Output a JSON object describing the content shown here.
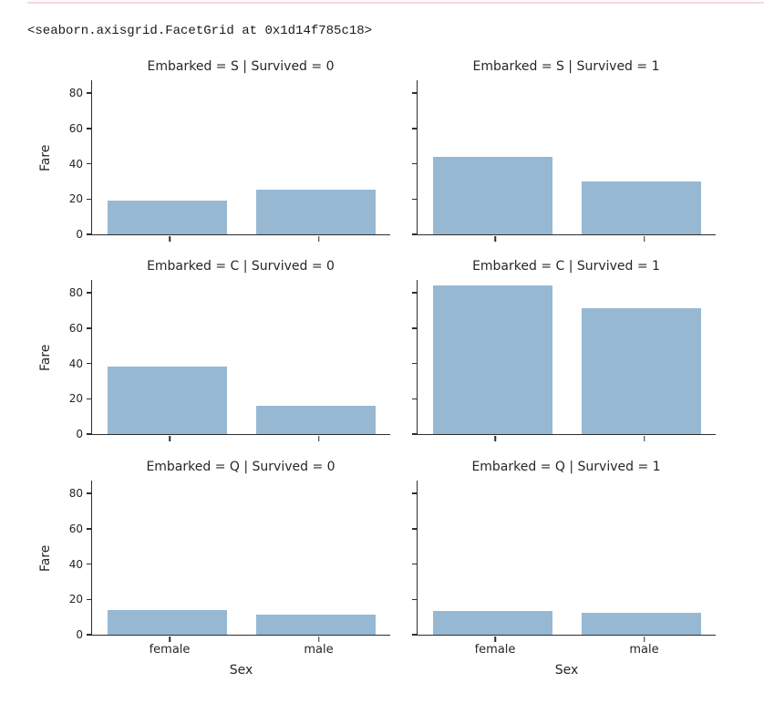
{
  "notebook": {
    "repr_text": "<seaborn.axisgrid.FacetGrid at 0x1d14f785c18>"
  },
  "colors": {
    "bar_fill": "#97b8d3",
    "axis": "#2e2e2e",
    "text": "#262626",
    "top_border": "#f8d7da"
  },
  "chart_data": {
    "type": "bar",
    "categories": [
      "female",
      "male"
    ],
    "xlabel": "Sex",
    "ylabel": "Fare",
    "yticks": [
      0,
      20,
      40,
      60,
      80
    ],
    "ylim": [
      0,
      87.3
    ],
    "grid": false,
    "legend": null,
    "facets": [
      {
        "title": "Embarked = S | Survived = 0",
        "row": 0,
        "col": 0,
        "values": [
          19,
          25.5
        ]
      },
      {
        "title": "Embarked = S | Survived = 1",
        "row": 0,
        "col": 1,
        "values": [
          44,
          30
        ]
      },
      {
        "title": "Embarked = C | Survived = 0",
        "row": 1,
        "col": 0,
        "values": [
          38,
          16
        ]
      },
      {
        "title": "Embarked = C | Survived = 1",
        "row": 1,
        "col": 1,
        "values": [
          84,
          71.5
        ]
      },
      {
        "title": "Embarked = Q | Survived = 0",
        "row": 2,
        "col": 0,
        "values": [
          14,
          11.5
        ]
      },
      {
        "title": "Embarked = Q | Survived = 1",
        "row": 2,
        "col": 1,
        "values": [
          13.5,
          12.5
        ]
      }
    ]
  }
}
